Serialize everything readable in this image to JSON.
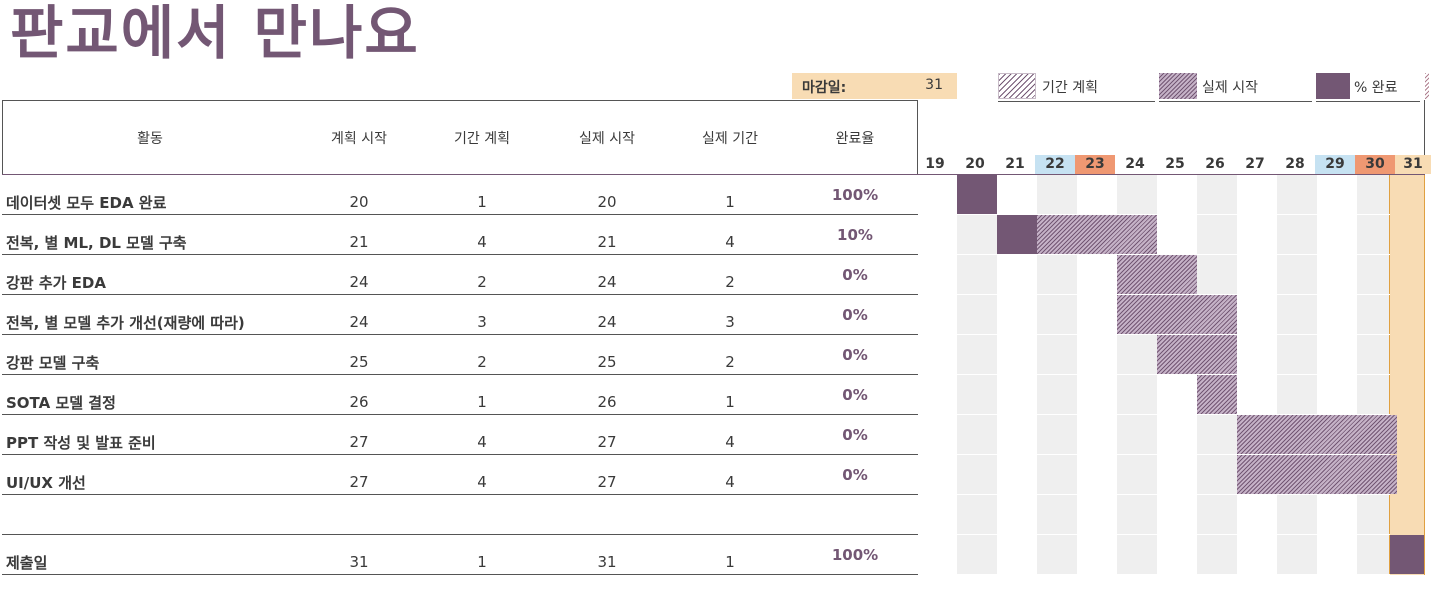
{
  "title": "판교에서 만나요",
  "legend": {
    "deadline_label": "마감일:",
    "deadline_value": "31",
    "plan_label": "기간 계획",
    "actual_label": "실제 시작",
    "done_label": "% 완료"
  },
  "headers": {
    "activity": "활동",
    "plan_start": "계획 시작",
    "plan_duration": "기간 계획",
    "actual_start": "실제 시작",
    "actual_duration": "실제 기간",
    "completion": "완료율"
  },
  "days": [
    "19",
    "20",
    "21",
    "22",
    "23",
    "24",
    "25",
    "26",
    "27",
    "28",
    "29",
    "30",
    "31"
  ],
  "day_highlight": {
    "22": "blue",
    "23": "orange",
    "29": "blue",
    "30": "orange",
    "31": "deadline"
  },
  "tasks": [
    {
      "name": "데이터셋 모두 EDA 완료",
      "plan_start": "20",
      "plan_duration": "1",
      "actual_start": "20",
      "actual_duration": "1",
      "completion": "100%"
    },
    {
      "name": "전복, 별 ML, DL 모델 구축",
      "plan_start": "21",
      "plan_duration": "4",
      "actual_start": "21",
      "actual_duration": "4",
      "completion": "10%"
    },
    {
      "name": "강판 추가 EDA",
      "plan_start": "24",
      "plan_duration": "2",
      "actual_start": "24",
      "actual_duration": "2",
      "completion": "0%"
    },
    {
      "name": "전복, 별 모델 추가 개선(재량에 따라)",
      "plan_start": "24",
      "plan_duration": "3",
      "actual_start": "24",
      "actual_duration": "3",
      "completion": "0%"
    },
    {
      "name": "강판 모델 구축",
      "plan_start": "25",
      "plan_duration": "2",
      "actual_start": "25",
      "actual_duration": "2",
      "completion": "0%"
    },
    {
      "name": "SOTA 모델 결정",
      "plan_start": "26",
      "plan_duration": "1",
      "actual_start": "26",
      "actual_duration": "1",
      "completion": "0%"
    },
    {
      "name": "PPT 작성 및 발표 준비",
      "plan_start": "27",
      "plan_duration": "4",
      "actual_start": "27",
      "actual_duration": "4",
      "completion": "0%"
    },
    {
      "name": "UI/UX 개선",
      "plan_start": "27",
      "plan_duration": "4",
      "actual_start": "27",
      "actual_duration": "4",
      "completion": "0%"
    },
    {
      "name": "",
      "plan_start": "",
      "plan_duration": "",
      "actual_start": "",
      "actual_duration": "",
      "completion": ""
    },
    {
      "name": "제출일",
      "plan_start": "31",
      "plan_duration": "1",
      "actual_start": "31",
      "actual_duration": "1",
      "completion": "100%"
    }
  ],
  "colors": {
    "accent": "#735774",
    "deadline": "#f8dcb4",
    "weekend_sat": "#c6e2f2",
    "weekend_sun": "#ef9872"
  }
}
